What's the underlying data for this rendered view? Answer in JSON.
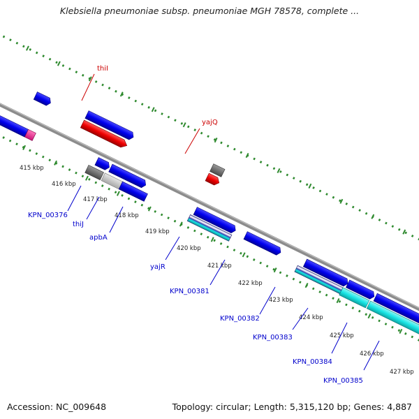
{
  "title": "Klebsiella pneumoniae subsp. pneumoniae MGH 78578, complete ...",
  "footer": {
    "accession": "Accession: NC_009648",
    "summary": "Topology: circular; Length: 5,315,120 bp; Genes: 4,887"
  },
  "colors": {
    "backbone": "#8c8c8c",
    "tick": "#2f8a2f",
    "gene_blue": "#0000ee",
    "gene_red": "#ee0000",
    "gene_gray": "#6e6e6e",
    "gene_lightgray": "#c8c8c8",
    "gene_cyan": "#19e6e6",
    "gene_pink": "#ff3399",
    "label_blue": "#0000cc",
    "label_red": "#cc0000"
  },
  "scale": {
    "unit": "kbp",
    "ticks": [
      "415 kbp",
      "416 kbp",
      "417 kbp",
      "418 kbp",
      "419 kbp",
      "420 kbp",
      "421 kbp",
      "422 kbp",
      "423 kbp",
      "424 kbp",
      "425 kbp",
      "426 kbp",
      "427 kbp"
    ]
  },
  "gene_labels": {
    "outer": [
      "thiI",
      "yajQ"
    ],
    "inner": [
      "KPN_00376",
      "thiJ",
      "apbA",
      "yajR",
      "KPN_00381",
      "KPN_00382",
      "KPN_00383",
      "KPN_00384",
      "KPN_00385"
    ]
  },
  "tracks": {
    "outer_blue": 3,
    "outer_red": 2,
    "inner_blue": 7,
    "inner_cyan": 3
  }
}
